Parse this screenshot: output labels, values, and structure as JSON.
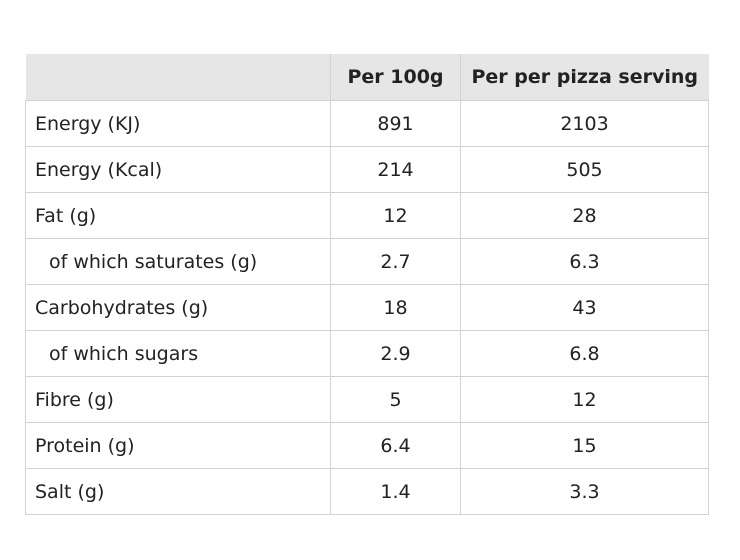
{
  "table": {
    "headers": [
      "",
      "Per 100g",
      "Per per pizza serving"
    ],
    "rows": [
      {
        "label": "Energy (KJ)",
        "per_100g": "891",
        "per_serving": "2103",
        "indent": false
      },
      {
        "label": "Energy (Kcal)",
        "per_100g": "214",
        "per_serving": "505",
        "indent": false
      },
      {
        "label": "Fat (g)",
        "per_100g": "12",
        "per_serving": "28",
        "indent": false
      },
      {
        "label": "of which saturates (g)",
        "per_100g": "2.7",
        "per_serving": "6.3",
        "indent": true
      },
      {
        "label": "Carbohydrates (g)",
        "per_100g": "18",
        "per_serving": "43",
        "indent": false
      },
      {
        "label": "of which sugars",
        "per_100g": "2.9",
        "per_serving": "6.8",
        "indent": true
      },
      {
        "label": "Fibre (g)",
        "per_100g": "5",
        "per_serving": "12",
        "indent": false
      },
      {
        "label": "Protein (g)",
        "per_100g": "6.4",
        "per_serving": "15",
        "indent": false
      },
      {
        "label": "Salt (g)",
        "per_100g": "1.4",
        "per_serving": "3.3",
        "indent": false
      }
    ]
  }
}
